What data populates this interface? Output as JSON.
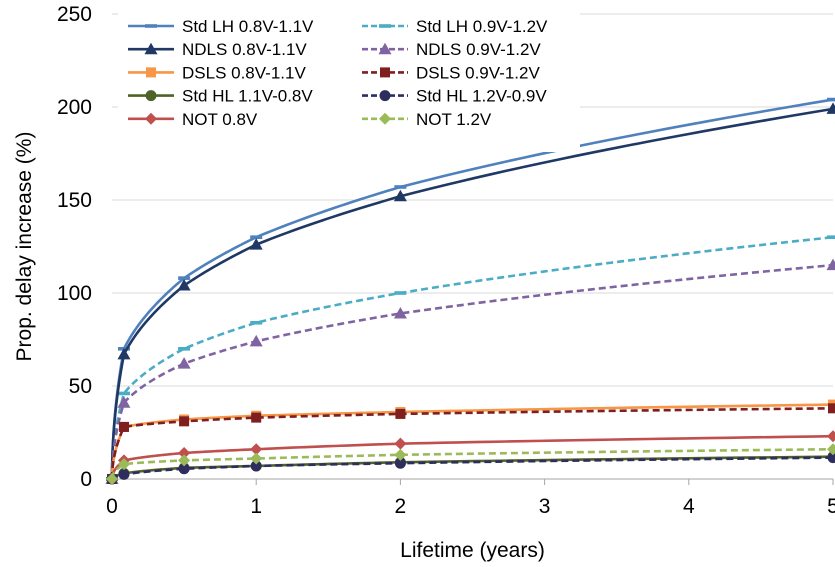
{
  "chart_data": {
    "type": "line",
    "title": "",
    "xlabel": "Lifetime (years)",
    "ylabel": "Prop. delay increase (%)",
    "xlim": [
      0,
      5
    ],
    "ylim": [
      0,
      250
    ],
    "xticks": [
      0,
      1,
      2,
      3,
      4,
      5
    ],
    "yticks": [
      0,
      50,
      100,
      150,
      200,
      250
    ],
    "grid": "horizontal",
    "legend_placement": "top-left",
    "series": [
      {
        "name": "Std LH 0.8V-1.1V",
        "color": "#4F81BD",
        "dash": "solid",
        "marker": "dash",
        "points": [
          [
            0,
            0
          ],
          [
            0.083,
            70
          ],
          [
            0.5,
            108
          ],
          [
            1,
            130
          ],
          [
            2,
            157
          ],
          [
            5,
            204
          ]
        ]
      },
      {
        "name": "Std LH 0.9V-1.2V",
        "color": "#4BACC6",
        "dash": "dashed",
        "marker": "dash",
        "points": [
          [
            0,
            0
          ],
          [
            0.083,
            46
          ],
          [
            0.5,
            70
          ],
          [
            1,
            84
          ],
          [
            2,
            100
          ],
          [
            5,
            130
          ]
        ]
      },
      {
        "name": "NDLS 0.8V-1.1V",
        "color": "#1F3864",
        "dash": "solid",
        "marker": "triangle",
        "points": [
          [
            0,
            0
          ],
          [
            0.083,
            67
          ],
          [
            0.5,
            104
          ],
          [
            1,
            126
          ],
          [
            2,
            152
          ],
          [
            5,
            199
          ]
        ]
      },
      {
        "name": "NDLS 0.9V-1.2V",
        "color": "#8064A2",
        "dash": "dashed",
        "marker": "triangle",
        "points": [
          [
            0,
            0
          ],
          [
            0.083,
            41
          ],
          [
            0.5,
            62
          ],
          [
            1,
            74
          ],
          [
            2,
            89
          ],
          [
            5,
            115
          ]
        ]
      },
      {
        "name": "DSLS 0.8V-1.1V",
        "color": "#F79646",
        "dash": "solid",
        "marker": "square",
        "points": [
          [
            0,
            0
          ],
          [
            0.083,
            28
          ],
          [
            0.5,
            32
          ],
          [
            1,
            34
          ],
          [
            2,
            36
          ],
          [
            5,
            40
          ]
        ]
      },
      {
        "name": "DSLS 0.9V-1.2V",
        "color": "#7F1F1F",
        "dash": "dashed",
        "marker": "square",
        "points": [
          [
            0,
            0
          ],
          [
            0.083,
            28
          ],
          [
            0.5,
            31
          ],
          [
            1,
            33
          ],
          [
            2,
            35
          ],
          [
            5,
            38
          ]
        ]
      },
      {
        "name": "Std HL 1.1V-0.8V",
        "color": "#4F6228",
        "dash": "solid",
        "marker": "circle",
        "points": [
          [
            0,
            0
          ],
          [
            0.083,
            3
          ],
          [
            0.5,
            6
          ],
          [
            1,
            7
          ],
          [
            2,
            9
          ],
          [
            5,
            12
          ]
        ]
      },
      {
        "name": "Std HL 1.2V-0.9V",
        "color": "#2E2E5E",
        "dash": "dashed",
        "marker": "circle",
        "points": [
          [
            0,
            0
          ],
          [
            0.083,
            2.5
          ],
          [
            0.5,
            5.5
          ],
          [
            1,
            7
          ],
          [
            2,
            8.5
          ],
          [
            5,
            11.5
          ]
        ]
      },
      {
        "name": "NOT 0.8V",
        "color": "#C0504D",
        "dash": "solid",
        "marker": "diamond",
        "points": [
          [
            0,
            0
          ],
          [
            0.083,
            10
          ],
          [
            0.5,
            14
          ],
          [
            1,
            16
          ],
          [
            2,
            19
          ],
          [
            5,
            23
          ]
        ]
      },
      {
        "name": "NOT 1.2V",
        "color": "#9BBB59",
        "dash": "dashed",
        "marker": "diamond",
        "points": [
          [
            0,
            0
          ],
          [
            0.083,
            8
          ],
          [
            0.5,
            10
          ],
          [
            1,
            11
          ],
          [
            2,
            13
          ],
          [
            5,
            16
          ]
        ]
      }
    ]
  }
}
